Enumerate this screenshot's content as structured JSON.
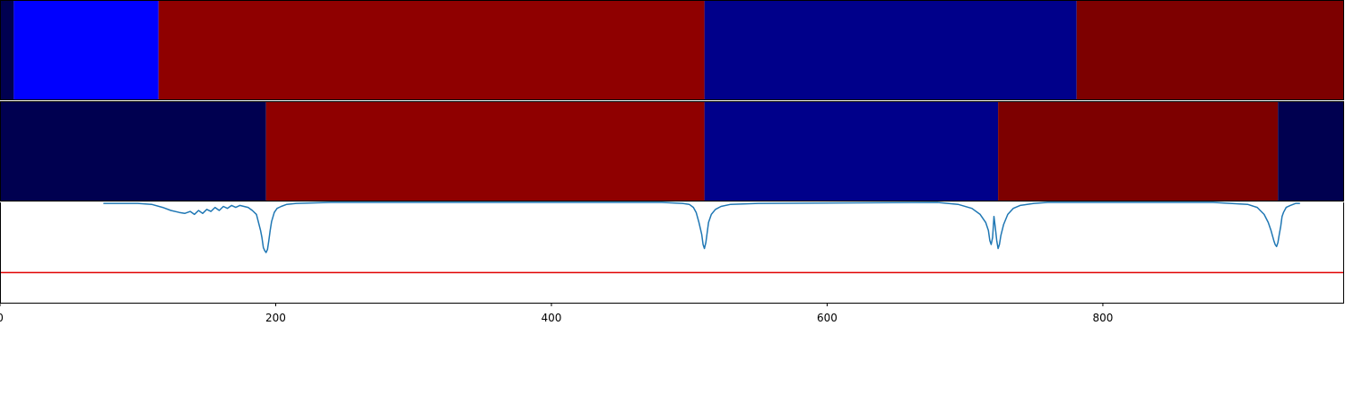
{
  "chart_data": {
    "type": "heatmap",
    "title": "",
    "xlabel": "",
    "ylabel": "",
    "xlim": [
      0,
      975
    ],
    "x_ticks": [
      {
        "value": 0,
        "label": "0"
      },
      {
        "value": 200,
        "label": "200"
      },
      {
        "value": 400,
        "label": "400"
      },
      {
        "value": 600,
        "label": "600"
      },
      {
        "value": 800,
        "label": "800"
      }
    ],
    "segment_rows": [
      {
        "segments": [
          {
            "start": 0,
            "end": 10,
            "color": "#000050"
          },
          {
            "start": 10,
            "end": 115,
            "color": "#0000ff"
          },
          {
            "start": 115,
            "end": 511,
            "color": "#8f0000"
          },
          {
            "start": 511,
            "end": 781,
            "color": "#00008a"
          },
          {
            "start": 781,
            "end": 975,
            "color": "#7d0000"
          }
        ]
      },
      {
        "segments": [
          {
            "start": 0,
            "end": 193,
            "color": "#000050"
          },
          {
            "start": 193,
            "end": 511,
            "color": "#8f0000"
          },
          {
            "start": 511,
            "end": 724,
            "color": "#00008a"
          },
          {
            "start": 724,
            "end": 927,
            "color": "#7d0000"
          },
          {
            "start": 927,
            "end": 975,
            "color": "#000050"
          }
        ]
      }
    ],
    "line_panel": {
      "ylim": [
        -1.0,
        0.0
      ],
      "threshold": -0.7,
      "threshold_color": "#e00000",
      "line_color": "#1f77b4",
      "x": [
        75,
        100,
        110,
        118,
        124,
        130,
        134,
        138,
        141,
        144,
        147,
        150,
        153,
        156,
        159,
        162,
        165,
        168,
        171,
        174,
        177,
        180,
        183,
        186,
        189,
        190,
        191,
        192,
        193,
        194,
        195,
        196,
        197,
        199,
        201,
        204,
        208,
        215,
        240,
        480,
        495,
        500,
        503,
        505,
        507,
        509,
        510,
        511,
        512,
        513,
        514,
        516,
        519,
        523,
        530,
        550,
        680,
        695,
        705,
        711,
        715,
        717,
        718,
        719,
        720,
        721,
        722,
        723,
        724,
        725,
        726,
        728,
        731,
        735,
        740,
        750,
        760,
        880,
        905,
        912,
        917,
        920,
        922,
        924,
        925,
        926,
        927,
        928,
        929,
        930,
        931,
        933,
        936,
        940,
        943
      ],
      "y": [
        -0.01,
        -0.01,
        -0.02,
        -0.05,
        -0.08,
        -0.1,
        -0.11,
        -0.09,
        -0.12,
        -0.08,
        -0.11,
        -0.07,
        -0.09,
        -0.05,
        -0.08,
        -0.04,
        -0.06,
        -0.03,
        -0.05,
        -0.03,
        -0.04,
        -0.05,
        -0.08,
        -0.12,
        -0.28,
        -0.35,
        -0.45,
        -0.48,
        -0.5,
        -0.47,
        -0.38,
        -0.28,
        -0.19,
        -0.1,
        -0.06,
        -0.04,
        -0.02,
        -0.01,
        0.0,
        0.0,
        -0.01,
        -0.02,
        -0.05,
        -0.1,
        -0.2,
        -0.32,
        -0.42,
        -0.46,
        -0.4,
        -0.3,
        -0.2,
        -0.12,
        -0.07,
        -0.04,
        -0.02,
        -0.01,
        0.0,
        -0.02,
        -0.06,
        -0.12,
        -0.2,
        -0.28,
        -0.38,
        -0.42,
        -0.35,
        -0.14,
        -0.25,
        -0.38,
        -0.46,
        -0.42,
        -0.33,
        -0.22,
        -0.12,
        -0.06,
        -0.03,
        -0.01,
        0.0,
        0.0,
        -0.02,
        -0.05,
        -0.12,
        -0.2,
        -0.28,
        -0.38,
        -0.42,
        -0.44,
        -0.4,
        -0.32,
        -0.24,
        -0.14,
        -0.1,
        -0.05,
        -0.03,
        -0.01,
        -0.01
      ]
    }
  }
}
